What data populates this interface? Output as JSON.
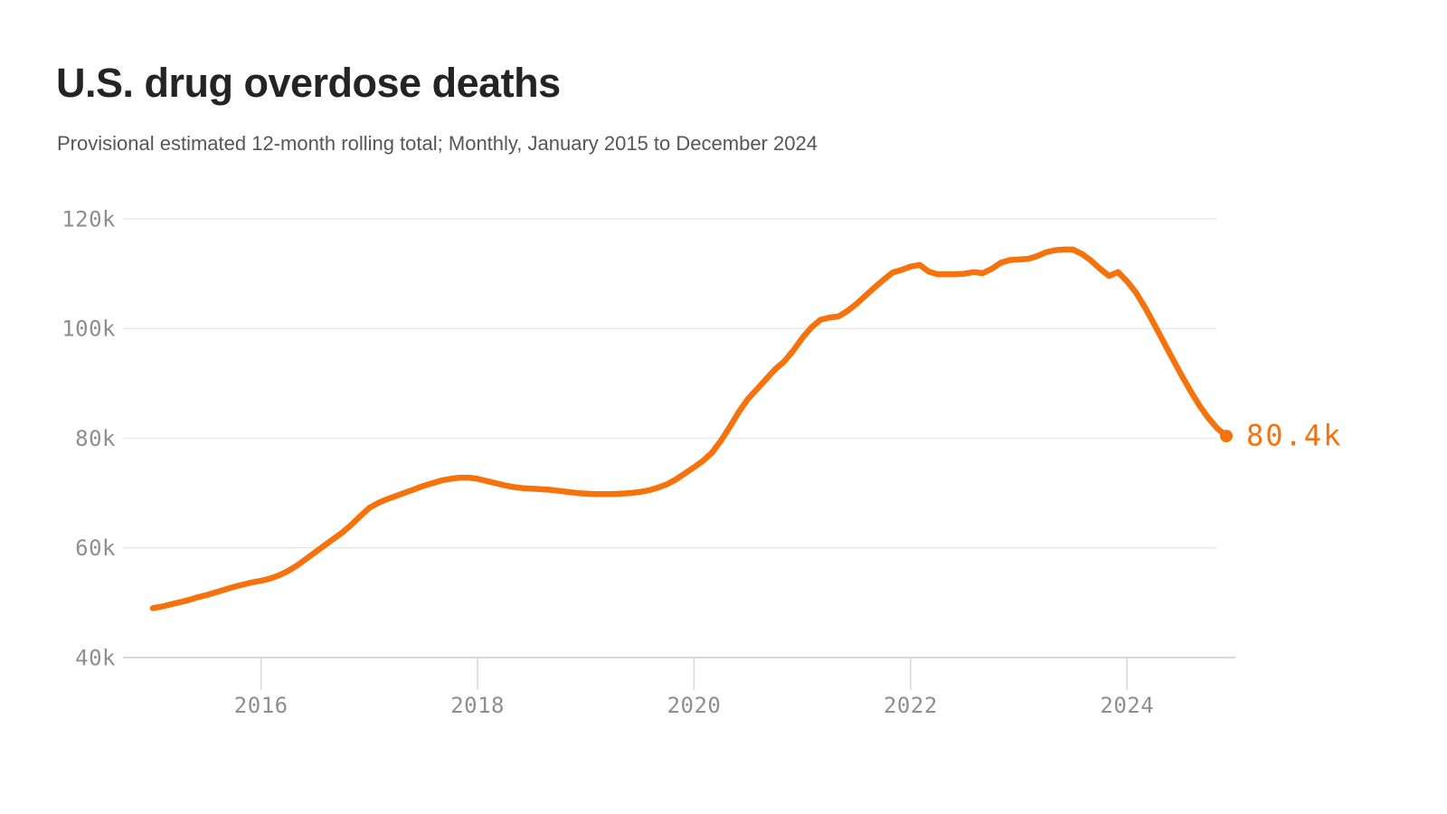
{
  "header": {
    "title": "U.S. drug overdose deaths",
    "subtitle": "Provisional estimated 12-month rolling total; Monthly, January 2015 to December 2024"
  },
  "chart_data": {
    "type": "line",
    "title": "U.S. drug overdose deaths",
    "subtitle": "Provisional estimated 12-month rolling total; Monthly, January 2015 to December 2024",
    "unit": "deaths, thousands (12-month rolling total)",
    "frequency": "monthly",
    "x_start": "2015-01",
    "x_end": "2024-12",
    "ylim": [
      40,
      120
    ],
    "grid": true,
    "legend": "none",
    "y_ticks": [
      {
        "value": 40,
        "label": "40k"
      },
      {
        "value": 60,
        "label": "60k"
      },
      {
        "value": 80,
        "label": "80k"
      },
      {
        "value": 100,
        "label": "100k"
      },
      {
        "value": 120,
        "label": "120k"
      }
    ],
    "x_tick_years": [
      2016,
      2018,
      2020,
      2022,
      2024
    ],
    "end_label": "80.4k",
    "end_value": 80.4,
    "series": [
      {
        "name": "U.S. drug overdose deaths, 12-month rolling total (thousands)",
        "values": [
          49.0,
          49.3,
          49.7,
          50.1,
          50.5,
          51.0,
          51.4,
          51.9,
          52.4,
          52.9,
          53.3,
          53.7,
          54.0,
          54.4,
          55.0,
          55.8,
          56.8,
          58.0,
          59.2,
          60.4,
          61.6,
          62.8,
          64.2,
          65.8,
          67.3,
          68.2,
          68.9,
          69.5,
          70.1,
          70.7,
          71.3,
          71.8,
          72.3,
          72.6,
          72.8,
          72.8,
          72.6,
          72.2,
          71.8,
          71.4,
          71.1,
          70.9,
          70.8,
          70.7,
          70.6,
          70.4,
          70.2,
          70.0,
          69.9,
          69.8,
          69.8,
          69.8,
          69.9,
          70.0,
          70.2,
          70.5,
          71.0,
          71.6,
          72.5,
          73.6,
          74.7,
          75.9,
          77.4,
          79.6,
          82.2,
          84.9,
          87.2,
          89.0,
          90.8,
          92.6,
          94.0,
          96.0,
          98.3,
          100.2,
          101.6,
          102.0,
          102.2,
          103.2,
          104.5,
          106.0,
          107.5,
          108.9,
          110.2,
          110.7,
          111.3,
          111.6,
          110.4,
          109.9,
          109.9,
          109.9,
          110.0,
          110.3,
          110.1,
          110.9,
          112.0,
          112.5,
          112.6,
          112.7,
          113.2,
          113.9,
          114.3,
          114.4,
          114.4,
          113.6,
          112.4,
          110.9,
          109.6,
          110.3,
          108.6,
          106.5,
          103.8,
          100.8,
          97.7,
          94.6,
          91.6,
          88.7,
          86.0,
          83.7,
          81.8,
          80.4
        ]
      }
    ],
    "colors": {
      "line": "#f5720d",
      "end_label": "#f5720d",
      "tick_text": "#8e8e8e",
      "grid": "#e9e9e9",
      "axis": "#d7d7d7",
      "title": "#242424",
      "subtitle": "#565656",
      "background": "#ffffff"
    }
  }
}
